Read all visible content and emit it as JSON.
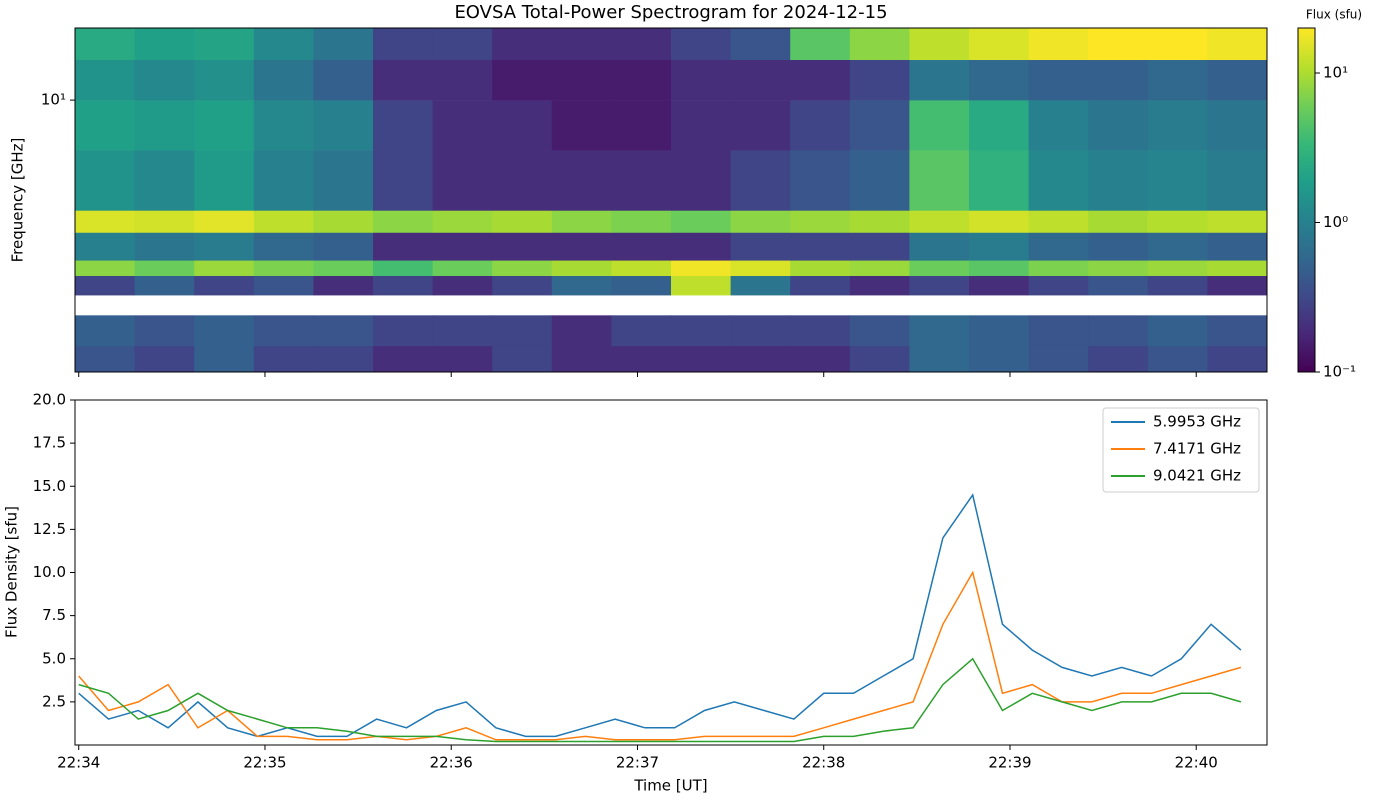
{
  "chart_data": [
    {
      "type": "heatmap",
      "title": "EOVSA Total-Power Spectrogram for 2024-12-15",
      "ylabel": "Frequency [GHz]",
      "xbins": [
        -0.02,
        0.3,
        0.62,
        0.94,
        1.26,
        1.58,
        1.9,
        2.22,
        2.54,
        2.86,
        3.18,
        3.5,
        3.82,
        4.14,
        4.46,
        4.78,
        5.1,
        5.42,
        5.74,
        6.06,
        6.38
      ],
      "ybins": [
        1.09,
        1.35,
        1.73,
        2.04,
        2.39,
        2.71,
        3.4,
        4.07,
        6.65,
        10,
        13.9,
        18
      ],
      "z": [
        [
          0.4,
          0.3,
          0.5,
          0.3,
          0.3,
          0.2,
          0.2,
          0.3,
          0.2,
          0.2,
          0.2,
          0.2,
          0.2,
          0.3,
          0.6,
          0.5,
          0.4,
          0.3,
          0.4,
          0.3
        ],
        [
          0.5,
          0.4,
          0.5,
          0.4,
          0.4,
          0.3,
          0.3,
          0.3,
          0.2,
          0.3,
          0.3,
          0.3,
          0.3,
          0.4,
          0.6,
          0.5,
          0.4,
          0.4,
          0.5,
          0.4
        ],
        [
          null,
          null,
          null,
          null,
          null,
          null,
          null,
          null,
          null,
          null,
          null,
          null,
          null,
          null,
          null,
          null,
          null,
          null,
          null,
          null
        ],
        [
          0.3,
          0.5,
          0.3,
          0.4,
          0.2,
          0.3,
          0.2,
          0.3,
          0.6,
          0.5,
          12,
          0.8,
          0.3,
          0.2,
          0.3,
          0.2,
          0.3,
          0.4,
          0.3,
          0.2
        ],
        [
          8,
          6,
          9,
          7,
          6,
          4,
          6,
          8,
          10,
          12,
          18,
          15,
          10,
          9,
          6,
          5,
          7,
          8,
          9,
          10
        ],
        [
          1,
          0.8,
          0.9,
          0.6,
          0.5,
          0.2,
          0.2,
          0.2,
          0.2,
          0.2,
          0.2,
          0.3,
          0.3,
          0.3,
          0.8,
          0.9,
          0.6,
          0.5,
          0.6,
          0.5
        ],
        [
          15,
          14,
          16,
          12,
          10,
          8,
          9,
          10,
          8,
          7,
          6,
          8,
          9,
          10,
          12,
          14,
          12,
          10,
          11,
          12
        ],
        [
          1.5,
          1.2,
          1.8,
          1.0,
          0.8,
          0.3,
          0.2,
          0.2,
          0.2,
          0.2,
          0.2,
          0.3,
          0.4,
          0.5,
          5,
          3,
          1.2,
          1.0,
          1.1,
          0.9
        ],
        [
          2,
          1.8,
          2,
          1.2,
          1,
          0.3,
          0.2,
          0.2,
          0.15,
          0.15,
          0.2,
          0.2,
          0.3,
          0.4,
          4,
          2.5,
          1,
          0.8,
          0.9,
          0.8
        ],
        [
          1.5,
          1.2,
          1.4,
          0.8,
          0.5,
          0.2,
          0.2,
          0.15,
          0.15,
          0.15,
          0.2,
          0.2,
          0.2,
          0.3,
          0.8,
          0.6,
          0.5,
          0.5,
          0.6,
          0.5
        ],
        [
          2.5,
          2,
          2.2,
          1.2,
          0.8,
          0.3,
          0.3,
          0.2,
          0.2,
          0.2,
          0.3,
          0.4,
          5,
          8,
          12,
          15,
          18,
          20,
          20,
          18
        ]
      ],
      "xlim": [
        -0.02,
        6.38
      ],
      "xticks": [
        0,
        1,
        2,
        3,
        4,
        5,
        6
      ],
      "ylim": [
        1.09,
        18
      ],
      "ylog": true,
      "yticks": [
        {
          "value": 10,
          "label": "10¹"
        }
      ],
      "colorbar": {
        "label": "Flux (sfu)",
        "cmap": "viridis",
        "log": true,
        "clim": [
          0.1,
          20
        ],
        "ticks": [
          {
            "value": 0.1,
            "label": "10⁻¹"
          },
          {
            "value": 1,
            "label": "10⁰"
          },
          {
            "value": 10,
            "label": "10¹"
          }
        ]
      }
    },
    {
      "type": "line",
      "xlabel": "Time [UT]",
      "ylabel": "Flux Density [sfu]",
      "legend": "upper right",
      "x": [
        0,
        0.16,
        0.32,
        0.48,
        0.64,
        0.8,
        0.96,
        1.12,
        1.28,
        1.44,
        1.6,
        1.76,
        1.92,
        2.08,
        2.24,
        2.4,
        2.56,
        2.72,
        2.88,
        3.04,
        3.2,
        3.36,
        3.52,
        3.68,
        3.84,
        4.0,
        4.16,
        4.32,
        4.48,
        4.64,
        4.8,
        4.96,
        5.12,
        5.28,
        5.44,
        5.6,
        5.76,
        5.92,
        6.08,
        6.24
      ],
      "series": [
        {
          "name": "5.9953 GHz",
          "color": "#1f77b4",
          "values": [
            3,
            1.5,
            2,
            1,
            2.5,
            1,
            0.5,
            1,
            0.5,
            0.5,
            1.5,
            1,
            2,
            2.5,
            1,
            0.5,
            0.5,
            1,
            1.5,
            1,
            1,
            2,
            2.5,
            2,
            1.5,
            3,
            3,
            4,
            5,
            12,
            14.5,
            7,
            5.5,
            4.5,
            4,
            4.5,
            4,
            5,
            7,
            5.5
          ]
        },
        {
          "name": "7.4171 GHz",
          "color": "#ff7f0e",
          "values": [
            4,
            2,
            2.5,
            3.5,
            1,
            2,
            0.5,
            0.5,
            0.3,
            0.3,
            0.5,
            0.3,
            0.5,
            1,
            0.3,
            0.3,
            0.3,
            0.5,
            0.3,
            0.3,
            0.3,
            0.5,
            0.5,
            0.5,
            0.5,
            1,
            1.5,
            2,
            2.5,
            7,
            10,
            3,
            3.5,
            2.5,
            2.5,
            3,
            3,
            3.5,
            4,
            4.5
          ]
        },
        {
          "name": "9.0421 GHz",
          "color": "#2ca02c",
          "values": [
            3.5,
            3,
            1.5,
            2,
            3,
            2,
            1.5,
            1,
            1,
            0.8,
            0.5,
            0.5,
            0.5,
            0.3,
            0.2,
            0.2,
            0.2,
            0.2,
            0.2,
            0.2,
            0.2,
            0.2,
            0.2,
            0.2,
            0.2,
            0.5,
            0.5,
            0.8,
            1,
            3.5,
            5,
            2,
            3,
            2.5,
            2,
            2.5,
            2.5,
            3,
            3,
            2.5
          ]
        }
      ],
      "xlim": [
        -0.02,
        6.38
      ],
      "xticks": [
        {
          "value": 0,
          "label": "22:34"
        },
        {
          "value": 1,
          "label": "22:35"
        },
        {
          "value": 2,
          "label": "22:36"
        },
        {
          "value": 3,
          "label": "22:37"
        },
        {
          "value": 4,
          "label": "22:38"
        },
        {
          "value": 5,
          "label": "22:39"
        },
        {
          "value": 6,
          "label": "22:40"
        }
      ],
      "ylim": [
        0,
        20
      ],
      "yticks": [
        2.5,
        {
          "value": 5,
          "label": "5.0"
        },
        7.5,
        {
          "value": 10,
          "label": "10.0"
        },
        12.5,
        {
          "value": 15,
          "label": "15.0"
        },
        17.5,
        {
          "value": 20,
          "label": "20.0"
        }
      ]
    }
  ]
}
